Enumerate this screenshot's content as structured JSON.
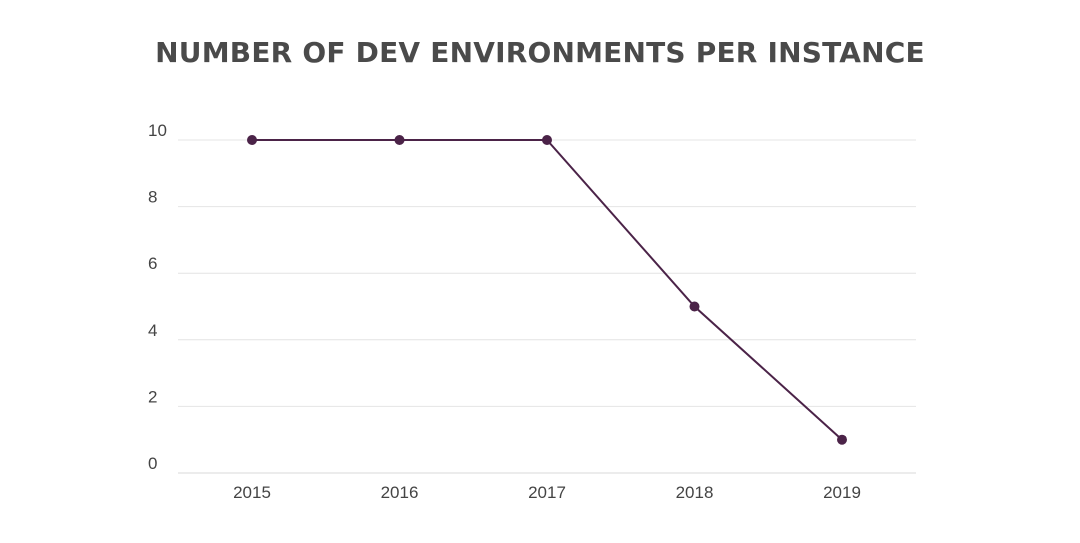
{
  "chart_data": {
    "type": "line",
    "title": "NUMBER OF DEV ENVIRONMENTS PER INSTANCE",
    "xlabel": "",
    "ylabel": "",
    "categories": [
      "2015",
      "2016",
      "2017",
      "2018",
      "2019"
    ],
    "series": [
      {
        "values": [
          10,
          10,
          10,
          5,
          1
        ]
      }
    ],
    "ylim": [
      0,
      10
    ],
    "yticks": [
      "0",
      "2",
      "4",
      "6",
      "8",
      "10"
    ],
    "grid": true,
    "legend": "none",
    "colors": {
      "line": "#4b2348"
    }
  }
}
